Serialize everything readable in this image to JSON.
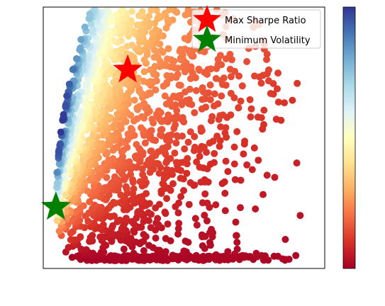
{
  "chart_data": {
    "type": "scatter",
    "title": "",
    "xlabel": "",
    "ylabel": "",
    "x_ticks_visible": false,
    "y_ticks_visible": false,
    "grid": false,
    "xlim": [
      0,
      1
    ],
    "ylim": [
      0,
      1
    ],
    "colormap": "RdYlBu",
    "colorbar": {
      "visible": true,
      "ticks_visible": false,
      "position": "right"
    },
    "point_cloud": {
      "description": "random portfolios",
      "count_estimate": 2600,
      "shape": "fan opening to the right, pinched at lower-left",
      "color_by": "sharpe ratio (low = red, high = blue)"
    },
    "markers": [
      {
        "name": "Max Sharpe Ratio",
        "x": 0.3,
        "y": 0.76,
        "color": "#ff0000",
        "marker": "star"
      },
      {
        "name": "Minimum Volatility",
        "x": 0.045,
        "y": 0.235,
        "color": "#008000",
        "marker": "star"
      }
    ],
    "legend": {
      "placement": "top-right",
      "entries": [
        {
          "label": "Max Sharpe Ratio",
          "color": "#ff0000"
        },
        {
          "label": "Minimum Volatility",
          "color": "#008000"
        }
      ]
    }
  }
}
